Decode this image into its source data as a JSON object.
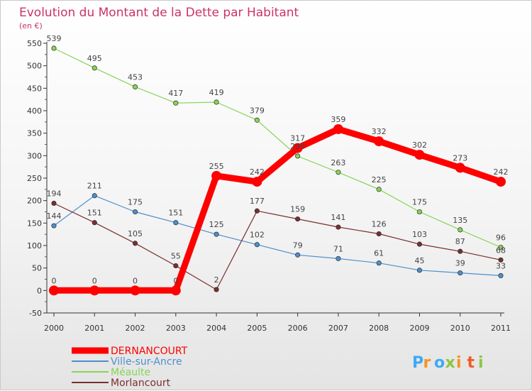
{
  "chart_data": {
    "type": "line",
    "title": "Evolution du Montant de la Dette par Habitant",
    "subtitle": "(en €)",
    "xlabel": "",
    "ylabel": "",
    "ylim": [
      -50,
      550
    ],
    "yticks": [
      -50,
      0,
      50,
      100,
      150,
      200,
      250,
      300,
      350,
      400,
      450,
      500,
      550
    ],
    "categories": [
      "2000",
      "2001",
      "2002",
      "2003",
      "2004",
      "2005",
      "2006",
      "2007",
      "2008",
      "2009",
      "2010",
      "2011"
    ],
    "grid": false,
    "legend_position": "bottom-left",
    "series": [
      {
        "name": "DERNANCOURT",
        "color": "#ff0000",
        "values": [
          0,
          0,
          0,
          0,
          255,
          242,
          317,
          359,
          332,
          302,
          273,
          242
        ]
      },
      {
        "name": "Ville-sur-Ancre",
        "color": "#4e8fcc",
        "values": [
          144,
          211,
          175,
          151,
          125,
          102,
          79,
          71,
          61,
          45,
          39,
          33
        ]
      },
      {
        "name": "Méaulte",
        "color": "#88d455",
        "values": [
          539,
          495,
          453,
          417,
          419,
          379,
          299,
          263,
          225,
          175,
          135,
          96
        ]
      },
      {
        "name": "Morlancourt",
        "color": "#7a2f2f",
        "values": [
          194,
          151,
          105,
          55,
          2,
          177,
          159,
          141,
          126,
          103,
          87,
          68
        ]
      }
    ]
  },
  "brand": {
    "letters": [
      "P",
      "r",
      "o",
      "x",
      "i",
      "t",
      "i"
    ],
    "colors": [
      "#3fa9f5",
      "#f7931e",
      "#3fa9f5",
      "#8cc63f",
      "#f7931e",
      "#f15a24",
      "#8cc63f"
    ]
  }
}
